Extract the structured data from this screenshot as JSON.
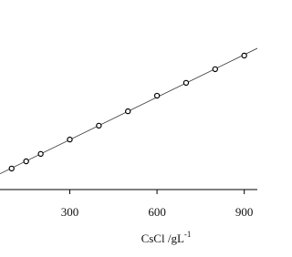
{
  "chart_data": {
    "type": "scatter",
    "xlabel": "CsCl  /gL",
    "xlabel_sup": "-1",
    "x": [
      100,
      150,
      200,
      300,
      400,
      500,
      600,
      700,
      800,
      900
    ],
    "series": [
      {
        "color": "#000000",
        "values": [
          11.1,
          14.9,
          18.8,
          26.4,
          33.7,
          41.3,
          49.5,
          56.3,
          63.5,
          70.7
        ]
      }
    ],
    "xlim": [
      60,
      945
    ],
    "xticks": [
      300,
      600,
      900
    ],
    "ylim": [
      0,
      100
    ],
    "fit_line": true
  }
}
